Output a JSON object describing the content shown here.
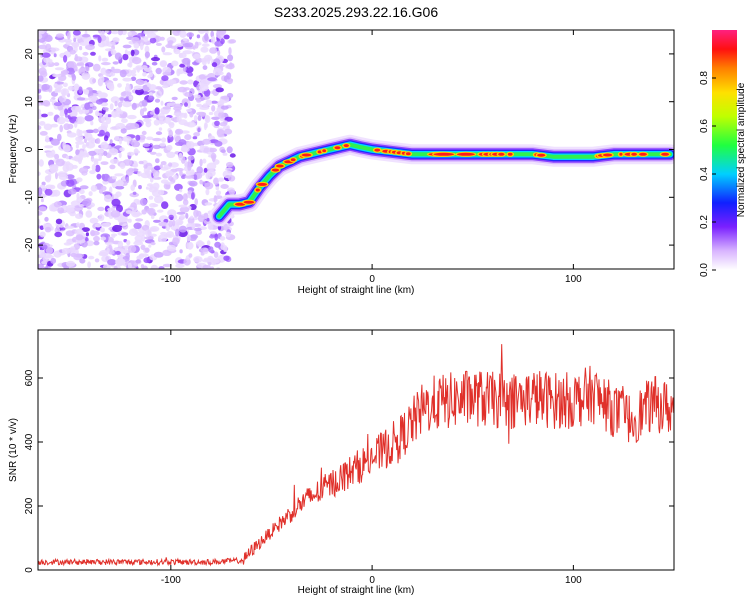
{
  "title": "S233.2025.293.22.16.G06",
  "chart_data": [
    {
      "type": "heatmap",
      "xlabel": "Height of straight line (km)",
      "ylabel": "Frequency (Hz)",
      "xlim": [
        -166,
        150
      ],
      "ylim": [
        -25,
        25
      ],
      "xticks": [
        -100,
        0,
        100
      ],
      "yticks": [
        -20,
        -10,
        0,
        10,
        20
      ],
      "noise_region_x": [
        -166,
        -72
      ],
      "ridge_frequency": {
        "x": [
          -76,
          -71,
          -66,
          -61,
          -56,
          -51,
          -46,
          -41,
          -36,
          -31,
          -26,
          -21,
          -16,
          -11,
          -6,
          0,
          10,
          20,
          30,
          40,
          50,
          60,
          70,
          80,
          90,
          100,
          110,
          120,
          130,
          140,
          148
        ],
        "y": [
          -14,
          -11.5,
          -11.5,
          -11,
          -8,
          -5.5,
          -3.5,
          -2.5,
          -1.5,
          -1,
          -0.5,
          0,
          0.5,
          1,
          0.5,
          0,
          -0.5,
          -1,
          -1,
          -1,
          -1,
          -1,
          -1,
          -1,
          -1.5,
          -1.5,
          -1.5,
          -1,
          -1,
          -1,
          -1
        ]
      },
      "colorbar": {
        "label": "Normalized spectral amplitude",
        "range": [
          0,
          1
        ],
        "ticks": [
          "0.0",
          "0.2",
          "0.4",
          "0.6",
          "0.8"
        ]
      }
    },
    {
      "type": "line",
      "xlabel": "Height of straight line (km)",
      "ylabel": "SNR (10 * v/v)",
      "xlim": [
        -166,
        150
      ],
      "ylim": [
        0,
        750
      ],
      "xticks": [
        -100,
        0,
        100
      ],
      "yticks": [
        0,
        200,
        400,
        600
      ],
      "series": [
        {
          "name": "SNR",
          "color": "#e0302a",
          "x": [
            -166,
            -140,
            -110,
            -80,
            -64,
            -60,
            -55,
            -50,
            -45,
            -40,
            -35,
            -30,
            -25,
            -20,
            -15,
            -10,
            -5,
            0,
            5,
            10,
            15,
            20,
            25,
            30,
            40,
            50,
            60,
            70,
            80,
            90,
            100,
            110,
            115,
            120,
            125,
            130,
            135,
            140,
            145,
            150
          ],
          "y": [
            25,
            25,
            25,
            25,
            30,
            60,
            90,
            120,
            150,
            180,
            210,
            230,
            250,
            270,
            290,
            310,
            330,
            350,
            370,
            395,
            420,
            460,
            500,
            520,
            530,
            540,
            530,
            530,
            540,
            530,
            530,
            550,
            520,
            500,
            480,
            470,
            500,
            520,
            510,
            500
          ]
        }
      ]
    }
  ]
}
